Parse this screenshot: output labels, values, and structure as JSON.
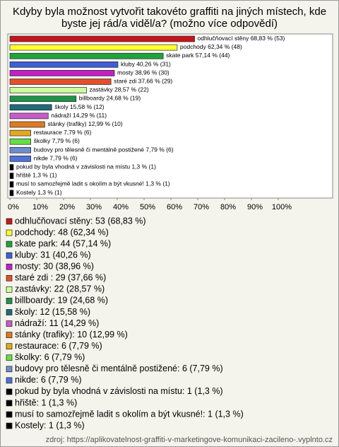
{
  "chart_data": {
    "type": "bar",
    "title": "Kdyby byla možnost vytvořit takovéto graffiti na jiných místech, kde byste jej rád/a viděl/a? (možno více odpovědí)",
    "categories": [
      "odhlučňovací stěny",
      "podchody",
      "skate park",
      "kluby",
      "mosty",
      "staré zdi",
      "zastávky",
      "billboardy",
      "školy",
      "nádraží",
      "stánky (trafiky)",
      "restaurace",
      "školky",
      "budovy pro tělesně či mentálně postižené",
      "nikde",
      "pokud by byla vhodná v závislosti na místu",
      "hřiště",
      "musí to samozřejmě ladit s okolím a být vkusné!",
      "Kostely"
    ],
    "values": [
      68.83,
      62.34,
      57.14,
      40.26,
      38.96,
      37.66,
      28.57,
      24.68,
      15.58,
      14.29,
      12.99,
      7.79,
      7.79,
      7.79,
      7.79,
      1.3,
      1.3,
      1.3,
      1.3
    ],
    "value_labels": [
      "68,83 % (53)",
      "62,34 % (48)",
      "57,14 % (44)",
      "40,26 % (31)",
      "38,96 % (30)",
      "37,66 % (29)",
      "28,57 % (22)",
      "24,68 % (19)",
      "15,58 % (12)",
      "14,29 % (11)",
      "12,99 % (10)",
      "7,79 % (6)",
      "7,79 % (6)",
      "7,79 % (6)",
      "7,79 % (6)",
      "1,3 % (1)",
      "1,3 % (1)",
      "1,3 % (1)",
      "1,3 % (1)"
    ],
    "legend_labels": [
      "odhlučňovací stěny: 53 (68,83 %)",
      "podchody: 48 (62,34 %)",
      "skate park: 44 (57,14 %)",
      "kluby: 31 (40,26 %)",
      "mosty: 30 (38,96 %)",
      "staré zdi : 29 (37,66 %)",
      "zastávky: 22 (28,57 %)",
      "billboardy: 19 (24,68 %)",
      "školy: 12 (15,58 %)",
      "nádraží: 11 (14,29 %)",
      "stánky (trafiky): 10 (12,99 %)",
      "restaurace: 6 (7,79 %)",
      "školky: 6 (7,79 %)",
      "budovy pro tělesně či mentálně postižené: 6 (7,79 %)",
      "nikde: 6 (7,79 %)",
      "pokud by byla vhodná v závislosti na místu: 1 (1,3 %)",
      "hřiště: 1 (1,3 %)",
      "musí to samozřejmě ladit s okolím a být vkusné!: 1 (1,3 %)",
      "Kostely: 1 (1,3 %)"
    ],
    "colors": [
      "#c4161c",
      "#ffff33",
      "#1fa33a",
      "#3f5fd6",
      "#c21fc8",
      "#e4502a",
      "#ccff99",
      "#20934a",
      "#1f6a78",
      "#c75cc9",
      "#dd7a1f",
      "#e3a81f",
      "#66dd44",
      "#6f8ccc",
      "#4f72d9",
      "#000000",
      "#000000",
      "#000000",
      "#000000"
    ],
    "xlim": [
      0,
      100
    ],
    "xticks": [
      {
        "value": 0,
        "label": "0%"
      },
      {
        "value": 10,
        "label": "10%"
      },
      {
        "value": 20,
        "label": "20%"
      },
      {
        "value": 30,
        "label": "30%"
      },
      {
        "value": 40,
        "label": "40%"
      },
      {
        "value": 50,
        "label": "50%"
      },
      {
        "value": 60,
        "label": "60%"
      },
      {
        "value": 70,
        "label": "70%"
      },
      {
        "value": 80,
        "label": "80%"
      },
      {
        "value": 90,
        "label": "90%"
      },
      {
        "value": 100,
        "label": "100%"
      }
    ],
    "source": "zdroj: https://aplikovatelnost-graffiti-v-marketingove-komunikaci-zacileno-.vyplnto.cz"
  }
}
